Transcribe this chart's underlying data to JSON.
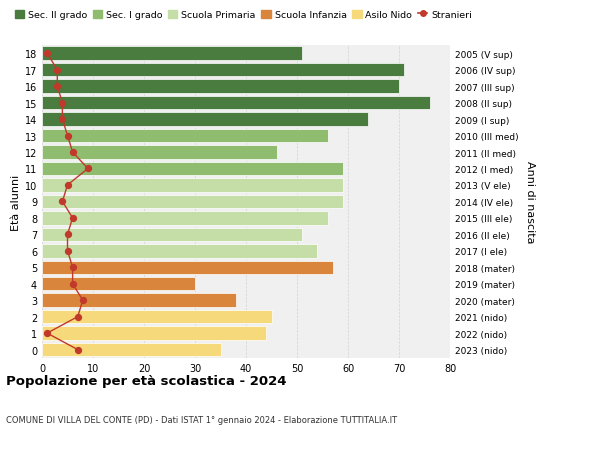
{
  "ages": [
    18,
    17,
    16,
    15,
    14,
    13,
    12,
    11,
    10,
    9,
    8,
    7,
    6,
    5,
    4,
    3,
    2,
    1,
    0
  ],
  "bar_values": [
    51,
    71,
    70,
    76,
    64,
    56,
    46,
    59,
    59,
    59,
    56,
    51,
    54,
    57,
    30,
    38,
    45,
    44,
    35
  ],
  "bar_colors": [
    "#4a7c3f",
    "#4a7c3f",
    "#4a7c3f",
    "#4a7c3f",
    "#4a7c3f",
    "#8fbc6e",
    "#8fbc6e",
    "#8fbc6e",
    "#c5dea8",
    "#c5dea8",
    "#c5dea8",
    "#c5dea8",
    "#c5dea8",
    "#d9853b",
    "#d9853b",
    "#d9853b",
    "#f5d97a",
    "#f5d97a",
    "#f5d97a"
  ],
  "stranieri_values": [
    1,
    3,
    3,
    4,
    4,
    5,
    6,
    9,
    5,
    4,
    6,
    5,
    5,
    6,
    6,
    8,
    7,
    1,
    7
  ],
  "right_labels": [
    "2005 (V sup)",
    "2006 (IV sup)",
    "2007 (III sup)",
    "2008 (II sup)",
    "2009 (I sup)",
    "2010 (III med)",
    "2011 (II med)",
    "2012 (I med)",
    "2013 (V ele)",
    "2014 (IV ele)",
    "2015 (III ele)",
    "2016 (II ele)",
    "2017 (I ele)",
    "2018 (mater)",
    "2019 (mater)",
    "2020 (mater)",
    "2021 (nido)",
    "2022 (nido)",
    "2023 (nido)"
  ],
  "legend_labels": [
    "Sec. II grado",
    "Sec. I grado",
    "Scuola Primaria",
    "Scuola Infanzia",
    "Asilo Nido",
    "Stranieri"
  ],
  "legend_colors": [
    "#4a7c3f",
    "#8fbc6e",
    "#c5dea8",
    "#d9853b",
    "#f5d97a",
    "#c0392b"
  ],
  "title": "Popolazione per età scolastica - 2024",
  "subtitle": "COMUNE DI VILLA DEL CONTE (PD) - Dati ISTAT 1° gennaio 2024 - Elaborazione TUTTITALIA.IT",
  "ylabel_left": "Età alunni",
  "ylabel_right": "Anni di nascita",
  "xlim": [
    0,
    80
  ],
  "background_color": "#ffffff",
  "bar_background": "#f0f0f0",
  "stranieri_color": "#c0392b"
}
